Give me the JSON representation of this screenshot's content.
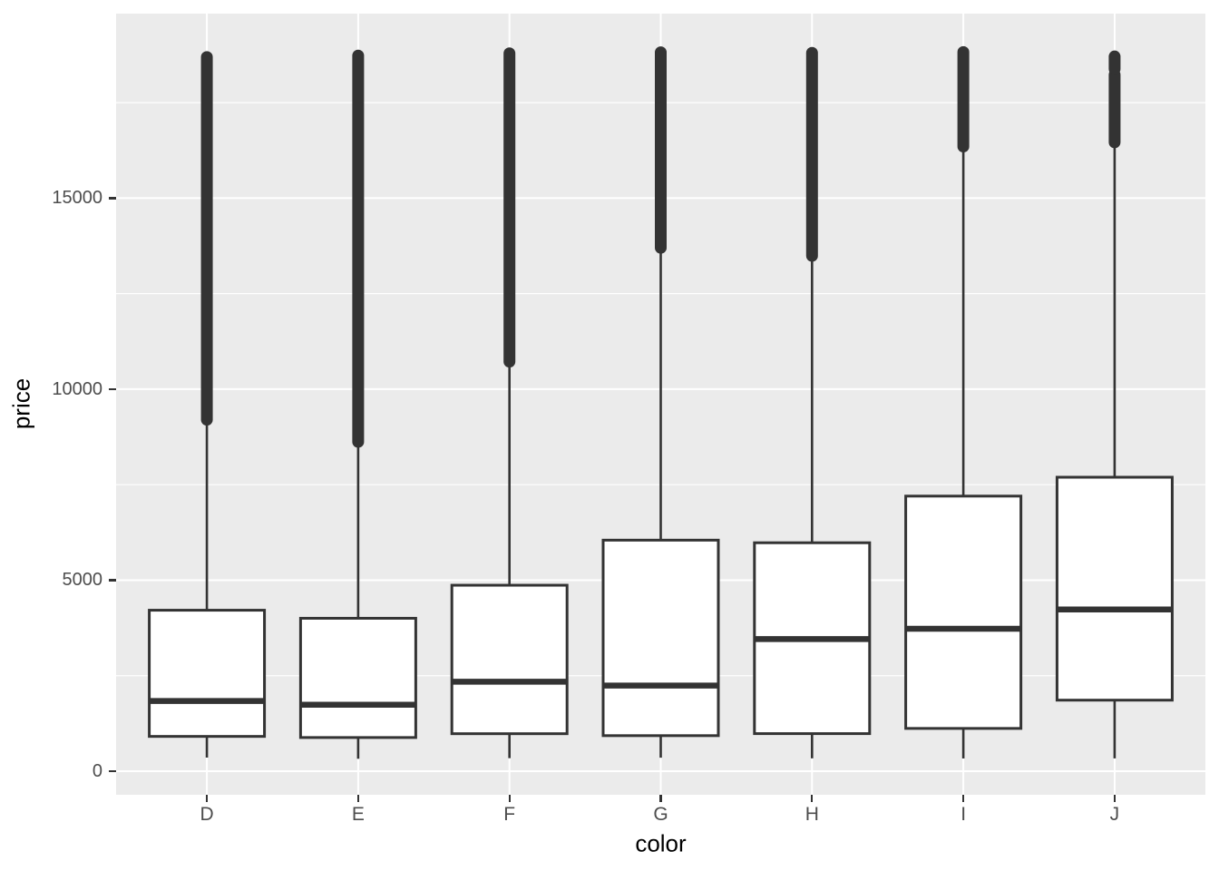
{
  "figure": {
    "background": "#FFFFFF",
    "panel_background": "#EBEBEB",
    "grid_color": "#FFFFFF",
    "box_stroke_color": "#333333",
    "box_fill_color": "#FFFFFF",
    "outlier_color": "#333333",
    "axis_text_color": "#4D4D4D",
    "axis_title_color": "#000000",
    "tick_mark_color": "#333333"
  },
  "chart_data": {
    "type": "boxplot",
    "title": "",
    "xlabel": "color",
    "ylabel": "price",
    "categories": [
      "D",
      "E",
      "F",
      "G",
      "H",
      "I",
      "J"
    ],
    "y_ticks": [
      0,
      5000,
      10000,
      15000
    ],
    "y_tick_labels": [
      "0",
      "5000",
      "10000",
      "15000"
    ],
    "y_minor_gridlines": [
      2500,
      7500,
      12500,
      17500
    ],
    "ylim": [
      -617,
      19830
    ],
    "grid": "white major+minor horizontal lines; white vertical major line at each category",
    "legend": "none",
    "series": [
      {
        "label": "D",
        "whisker_low": 357,
        "q1": 911,
        "median": 1838,
        "q3": 4214,
        "whisker_high": 9168,
        "outlier_segments": [
          [
            9200,
            18693
          ]
        ]
      },
      {
        "label": "E",
        "whisker_low": 326,
        "q1": 882,
        "median": 1739,
        "q3": 4003,
        "whisker_high": 8593,
        "outlier_segments": [
          [
            8620,
            18731
          ]
        ]
      },
      {
        "label": "F",
        "whisker_low": 342,
        "q1": 982,
        "median": 2343,
        "q3": 4868,
        "whisker_high": 10691,
        "outlier_segments": [
          [
            10720,
            18791
          ]
        ]
      },
      {
        "label": "G",
        "whisker_low": 354,
        "q1": 931,
        "median": 2242,
        "q3": 6048,
        "whisker_high": 13673,
        "outlier_segments": [
          [
            13700,
            18818
          ]
        ]
      },
      {
        "label": "H",
        "whisker_low": 337,
        "q1": 984,
        "median": 3460,
        "q3": 5980,
        "whisker_high": 13460,
        "outlier_segments": [
          [
            13490,
            18803
          ]
        ]
      },
      {
        "label": "I",
        "whisker_low": 334,
        "q1": 1120,
        "median": 3730,
        "q3": 7201,
        "whisker_high": 16323,
        "outlier_segments": [
          [
            16350,
            18823
          ]
        ]
      },
      {
        "label": "J",
        "whisker_low": 335,
        "q1": 1860,
        "median": 4234,
        "q3": 7695,
        "whisker_high": 16435,
        "outlier_segments": [
          [
            16460,
            18230
          ],
          [
            18380,
            18710
          ]
        ]
      }
    ]
  }
}
